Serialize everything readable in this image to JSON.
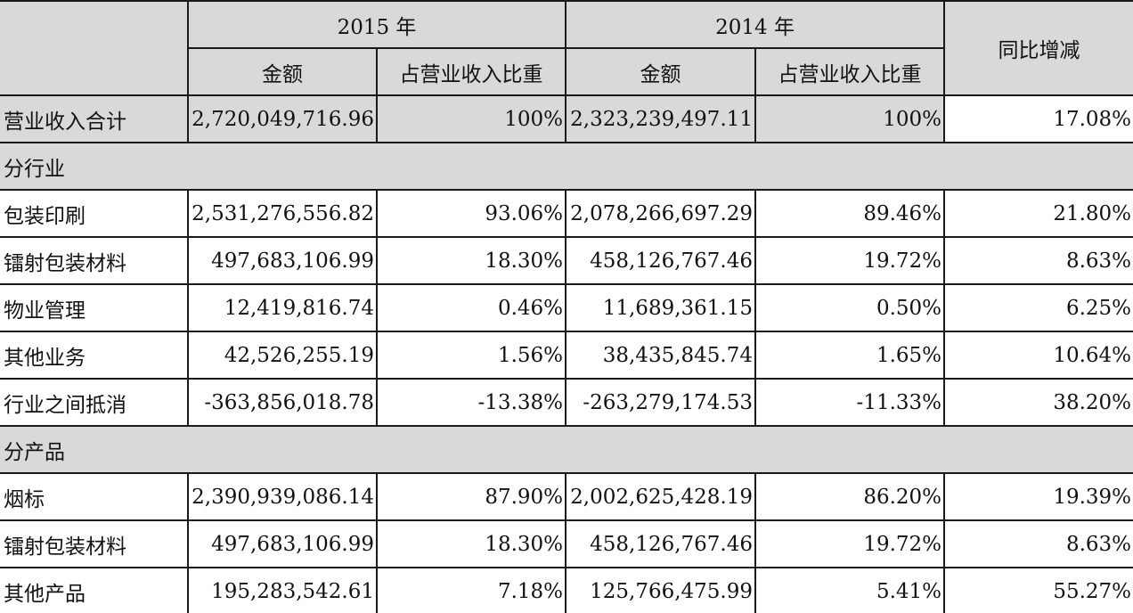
{
  "header": {
    "year_2015": "2015 年",
    "year_2014": "2014 年",
    "change": "同比增减",
    "amount": "金额",
    "share": "占营业收入比重"
  },
  "total": {
    "label": "营业收入合计",
    "amount_2015": "2,720,049,716.96",
    "share_2015": "100%",
    "amount_2014": "2,323,239,497.11",
    "share_2014": "100%",
    "change": "17.08%"
  },
  "sections": [
    {
      "title": "分行业",
      "rows": [
        {
          "label": "包装印刷",
          "amount_2015": "2,531,276,556.82",
          "share_2015": "93.06%",
          "amount_2014": "2,078,266,697.29",
          "share_2014": "89.46%",
          "change": "21.80%"
        },
        {
          "label": "镭射包装材料",
          "amount_2015": "497,683,106.99",
          "share_2015": "18.30%",
          "amount_2014": "458,126,767.46",
          "share_2014": "19.72%",
          "change": "8.63%"
        },
        {
          "label": "物业管理",
          "amount_2015": "12,419,816.74",
          "share_2015": "0.46%",
          "amount_2014": "11,689,361.15",
          "share_2014": "0.50%",
          "change": "6.25%"
        },
        {
          "label": "其他业务",
          "amount_2015": "42,526,255.19",
          "share_2015": "1.56%",
          "amount_2014": "38,435,845.74",
          "share_2014": "1.65%",
          "change": "10.64%"
        },
        {
          "label": "行业之间抵消",
          "amount_2015": "-363,856,018.78",
          "share_2015": "-13.38%",
          "amount_2014": "-263,279,174.53",
          "share_2014": "-11.33%",
          "change": "38.20%"
        }
      ]
    },
    {
      "title": "分产品",
      "rows": [
        {
          "label": "烟标",
          "amount_2015": "2,390,939,086.14",
          "share_2015": "87.90%",
          "amount_2014": "2,002,625,428.19",
          "share_2014": "86.20%",
          "change": "19.39%"
        },
        {
          "label": "镭射包装材料",
          "amount_2015": "497,683,106.99",
          "share_2015": "18.30%",
          "amount_2014": "458,126,767.46",
          "share_2014": "19.72%",
          "change": "8.63%"
        },
        {
          "label": "其他产品",
          "amount_2015": "195,283,542.61",
          "share_2015": "7.18%",
          "amount_2014": "125,766,475.99",
          "share_2014": "5.41%",
          "change": "55.27%"
        }
      ]
    }
  ]
}
